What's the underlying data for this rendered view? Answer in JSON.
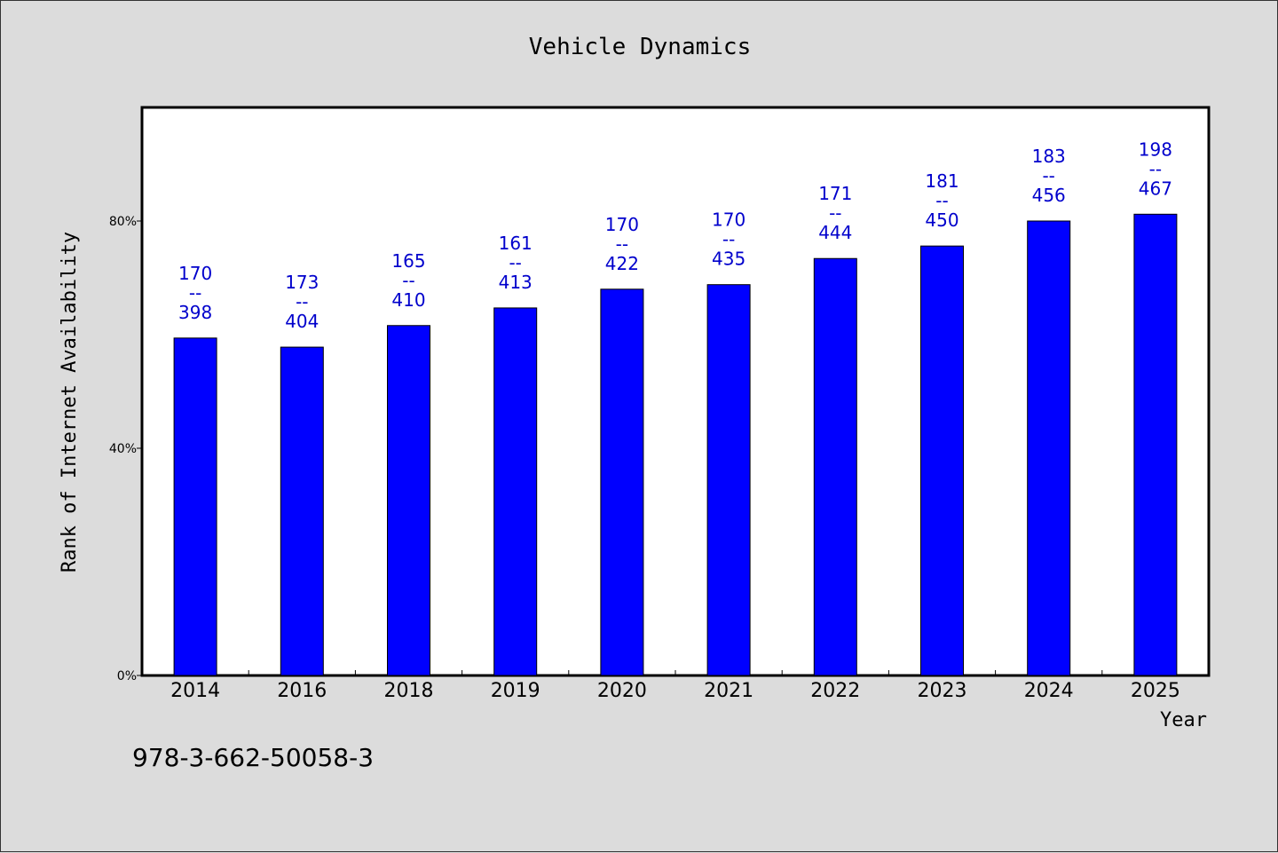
{
  "chart_data": {
    "type": "bar",
    "title": "Vehicle Dynamics",
    "xlabel": "Year",
    "ylabel": "Rank of Internet Availability",
    "categories": [
      "2014",
      "2016",
      "2018",
      "2019",
      "2020",
      "2021",
      "2022",
      "2023",
      "2024",
      "2025"
    ],
    "values": [
      59.4,
      57.8,
      61.6,
      64.7,
      68.0,
      68.8,
      73.4,
      75.6,
      80.0,
      81.2
    ],
    "data_labels": [
      [
        "170",
        "--",
        "398"
      ],
      [
        "173",
        "--",
        "404"
      ],
      [
        "165",
        "--",
        "410"
      ],
      [
        "161",
        "--",
        "413"
      ],
      [
        "170",
        "--",
        "422"
      ],
      [
        "170",
        "--",
        "435"
      ],
      [
        "171",
        "--",
        "444"
      ],
      [
        "181",
        "--",
        "450"
      ],
      [
        "183",
        "--",
        "456"
      ],
      [
        "198",
        "--",
        "467"
      ]
    ],
    "ylim": [
      0,
      100
    ],
    "yticks": [
      0,
      40,
      80
    ],
    "ytick_labels": [
      "0%",
      "40%",
      "80%"
    ],
    "grid": false,
    "bar_color": "#0000ff",
    "label_color": "#0000cc"
  },
  "footer_code": "978-3-662-50058-3"
}
